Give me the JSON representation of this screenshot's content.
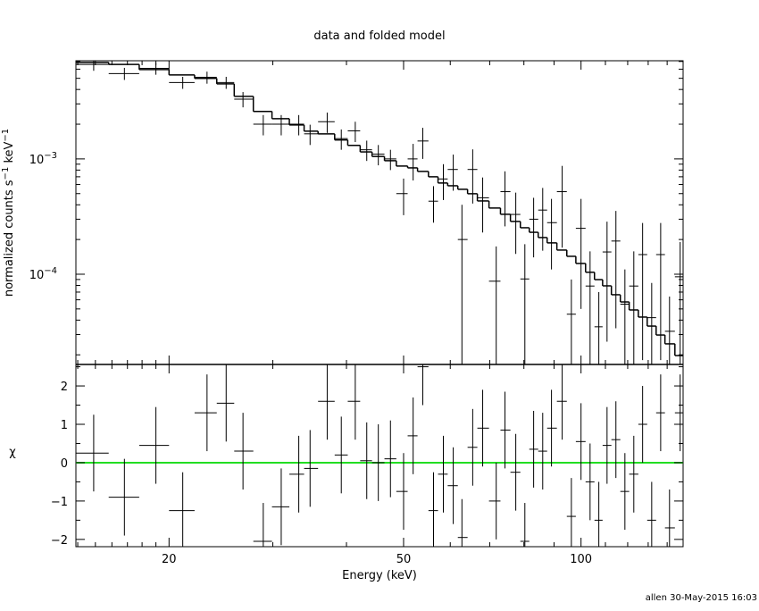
{
  "chart_data": [
    {
      "type": "errorbar",
      "title": "data and folded model",
      "ylabel": [
        "normalized counts s",
        "−1",
        " keV",
        "−1"
      ],
      "ylog": true,
      "xlog": true,
      "xlim": [
        13.9,
        149
      ],
      "ylim": [
        1.65e-05,
        0.0071
      ],
      "yticks": [
        {
          "value": 0.001,
          "base": "10",
          "exp": "−3"
        },
        {
          "value": 0.0001,
          "base": "10",
          "exp": "−4"
        }
      ],
      "yminor_ticks": [
        2e-05,
        3e-05,
        4e-05,
        5e-05,
        6e-05,
        7e-05,
        8e-05,
        9e-05,
        0.0002,
        0.0003,
        0.0004,
        0.0005,
        0.0006,
        0.0007,
        0.0008,
        0.0009,
        0.002,
        0.003,
        0.004,
        0.005,
        0.006,
        0.007
      ],
      "bins": [
        13.9,
        15.8,
        17.8,
        20.0,
        22.1,
        24.1,
        25.8,
        27.8,
        29.9,
        32.0,
        33.9,
        35.8,
        38.2,
        40.2,
        42.2,
        44.2,
        46.4,
        48.6,
        50.8,
        52.8,
        55.1,
        57.2,
        59.4,
        61.8,
        64.2,
        66.7,
        69.8,
        73.0,
        75.9,
        78.9,
        81.7,
        84.6,
        87.6,
        91.0,
        94.6,
        98.0,
        101.8,
        105.4,
        108.8,
        112.6,
        116.6,
        120.7,
        125.1,
        129.5,
        134.1,
        138.8,
        144.3,
        149.0
      ],
      "x": [
        14.9,
        16.8,
        19.0,
        21.1,
        23.2,
        25.0,
        26.7,
        28.9,
        31.0,
        33.2,
        34.7,
        37.1,
        39.2,
        41.4,
        43.3,
        45.3,
        47.5,
        50.0,
        51.9,
        53.9,
        56.2,
        58.4,
        60.7,
        62.8,
        65.5,
        68.1,
        71.8,
        74.3,
        77.5,
        80.3,
        83.1,
        86.1,
        89.1,
        92.9,
        96.3,
        100,
        103.6,
        107.2,
        110.7,
        114.6,
        118.7,
        122.9,
        127.2,
        131.8,
        136.5,
        141.3,
        147.3
      ],
      "series": [
        {
          "name": "data",
          "color": "#000000",
          "values": [
            0.0066,
            0.0055,
            0.0061,
            0.0046,
            0.0051,
            0.0046,
            0.0033,
            0.002,
            0.002,
            0.002,
            0.00165,
            0.0021,
            0.0015,
            0.00175,
            0.0012,
            0.0011,
            0.001,
            0.0005,
            0.001,
            0.00143,
            0.00043,
            0.00067,
            0.00081,
            0.0002,
            0.00081,
            0.00046,
            8.7e-05,
            0.00052,
            0.00033,
            9.1e-05,
            0.0003,
            0.00036,
            0.00028,
            0.00052,
            4.5e-05,
            0.00025,
            7.9e-05,
            3.5e-05,
            0.000156,
            0.000194,
            5.5e-05,
            7.9e-05,
            0.000148,
            4.2e-05,
            0.000148,
            3.2e-05,
            9.5e-05
          ],
          "yerr": [
            0.00079,
            0.00066,
            0.00073,
            0.00055,
            0.00061,
            0.00055,
            0.0005,
            0.0004,
            0.0004,
            0.0004,
            0.00033,
            0.00042,
            0.0003,
            0.00035,
            0.00024,
            0.00022,
            0.0002,
            0.000175,
            0.00035,
            0.00043,
            0.00015,
            0.00023,
            0.00028,
            0.0002,
            0.0004,
            0.00023,
            8.7e-05,
            0.00026,
            0.00018,
            9.1e-05,
            0.00016,
            0.0002,
            0.00017,
            0.00035,
            4.5e-05,
            0.0002,
            7.9e-05,
            3.5e-05,
            0.00013,
            0.00016,
            5.5e-05,
            7.9e-05,
            0.00013,
            4.2e-05,
            0.00013,
            3.2e-05,
            9.5e-05
          ]
        },
        {
          "name": "model",
          "color": "#000000",
          "values": [
            0.00687,
            0.0066,
            0.00596,
            0.00535,
            0.00499,
            0.00448,
            0.00349,
            0.00258,
            0.00223,
            0.00197,
            0.00174,
            0.00165,
            0.00146,
            0.00131,
            0.00115,
            0.00105,
            0.000965,
            0.000867,
            0.000836,
            0.000779,
            0.0007,
            0.000618,
            0.000585,
            0.000545,
            0.000499,
            0.000432,
            0.000375,
            0.000331,
            0.000287,
            0.000253,
            0.000231,
            0.000208,
            0.000187,
            0.000162,
            0.000143,
            0.000124,
            0.000104,
            8.98e-05,
            7.93e-05,
            6.64e-05,
            5.75e-05,
            4.9e-05,
            4.25e-05,
            3.55e-05,
            2.97e-05,
            2.49e-05,
            1.97e-05
          ]
        }
      ]
    },
    {
      "type": "residual",
      "ylabel": "χ",
      "xlabel": "Energy (keV)",
      "xlog": true,
      "xlim": [
        13.9,
        149
      ],
      "ylim": [
        -2.19,
        2.56
      ],
      "xticks": [
        20,
        50,
        100
      ],
      "xminor_ticks": [
        14,
        15,
        16,
        17,
        18,
        19,
        30,
        40,
        60,
        70,
        80,
        90,
        110,
        120,
        130,
        140
      ],
      "yticks": [
        {
          "value": -2,
          "label": "−2"
        },
        {
          "value": -1,
          "label": "−1"
        },
        0,
        1,
        2
      ],
      "yminor_ticks": [
        -1.5,
        -0.5,
        0.5,
        1.5,
        2.5
      ],
      "zero_line_color": "#22dd22",
      "values": [
        0.25,
        -0.9,
        0.45,
        -1.25,
        1.3,
        1.55,
        0.3,
        -2.05,
        -1.15,
        -0.3,
        -0.15,
        1.6,
        0.2,
        1.6,
        0.05,
        0.0,
        0.1,
        -0.75,
        0.7,
        2.5,
        -1.25,
        -0.3,
        -0.6,
        -1.95,
        0.4,
        0.9,
        -1.0,
        0.85,
        -0.25,
        -2.05,
        0.35,
        0.3,
        0.9,
        1.6,
        -1.4,
        0.55,
        -0.5,
        -1.5,
        0.45,
        0.6,
        -0.75,
        -0.3,
        1.0,
        -1.5,
        1.3,
        -1.7,
        1.3
      ],
      "yerr": [
        1,
        1,
        1,
        1,
        1,
        1,
        1,
        1,
        1,
        1,
        1,
        1,
        1,
        1,
        1,
        1,
        1,
        1,
        1,
        1,
        1,
        1,
        1,
        1,
        1,
        1,
        1,
        1,
        1,
        1,
        1,
        1,
        1,
        1,
        1,
        1,
        1,
        1,
        1,
        1,
        1,
        1,
        1,
        1,
        1,
        1,
        1
      ]
    }
  ],
  "footer": "allen 30-May-2015 16:03"
}
